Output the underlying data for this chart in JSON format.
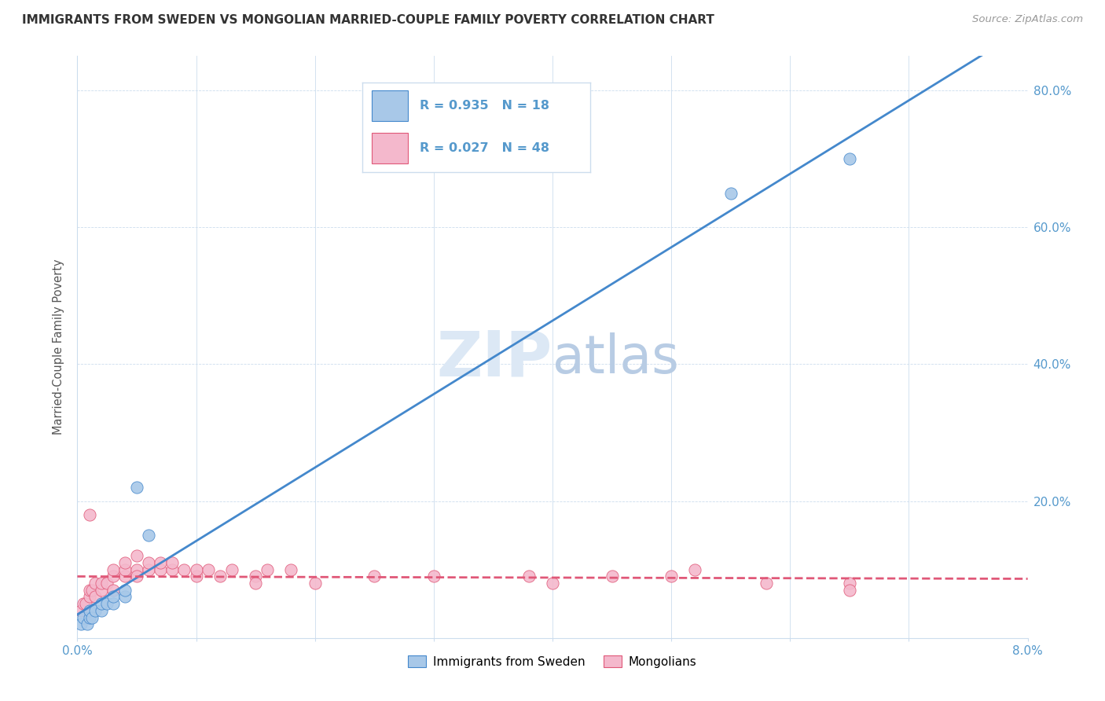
{
  "title": "IMMIGRANTS FROM SWEDEN VS MONGOLIAN MARRIED-COUPLE FAMILY POVERTY CORRELATION CHART",
  "source": "Source: ZipAtlas.com",
  "ylabel": "Married-Couple Family Poverty",
  "legend1_label": "Immigrants from Sweden",
  "legend2_label": "Mongolians",
  "legend1_R": "0.935",
  "legend1_N": "18",
  "legend2_R": "0.027",
  "legend2_N": "48",
  "color_sweden": "#a8c8e8",
  "color_mongolia": "#f4b8cc",
  "color_line_sweden": "#4488cc",
  "color_line_mongolia": "#e05878",
  "color_axis_text": "#5599cc",
  "color_title": "#333333",
  "color_source": "#999999",
  "watermark_color": "#dce8f5",
  "background_color": "#ffffff",
  "grid_color": "#ccddee",
  "xmin": 0.0,
  "xmax": 0.08,
  "ymin": 0.0,
  "ymax": 0.85,
  "ytick_vals": [
    0.2,
    0.4,
    0.6,
    0.8
  ],
  "ytick_labels": [
    "20.0%",
    "40.0%",
    "60.0%",
    "80.0%"
  ],
  "sweden_x": [
    0.0003,
    0.0005,
    0.0008,
    0.001,
    0.001,
    0.0012,
    0.0015,
    0.002,
    0.002,
    0.0025,
    0.003,
    0.003,
    0.004,
    0.004,
    0.005,
    0.006,
    0.055,
    0.065
  ],
  "sweden_y": [
    0.02,
    0.03,
    0.02,
    0.03,
    0.04,
    0.03,
    0.04,
    0.04,
    0.05,
    0.05,
    0.05,
    0.06,
    0.06,
    0.07,
    0.22,
    0.15,
    0.65,
    0.7
  ],
  "mongolia_x": [
    0.0003,
    0.0005,
    0.0007,
    0.001,
    0.001,
    0.0012,
    0.0015,
    0.0015,
    0.002,
    0.002,
    0.0025,
    0.003,
    0.003,
    0.003,
    0.004,
    0.004,
    0.004,
    0.005,
    0.005,
    0.005,
    0.006,
    0.006,
    0.007,
    0.007,
    0.008,
    0.008,
    0.009,
    0.01,
    0.01,
    0.011,
    0.012,
    0.013,
    0.015,
    0.015,
    0.016,
    0.018,
    0.02,
    0.025,
    0.03,
    0.038,
    0.04,
    0.045,
    0.05,
    0.052,
    0.058,
    0.065,
    0.001,
    0.065
  ],
  "mongolia_y": [
    0.04,
    0.05,
    0.05,
    0.06,
    0.07,
    0.07,
    0.06,
    0.08,
    0.07,
    0.08,
    0.08,
    0.07,
    0.09,
    0.1,
    0.09,
    0.1,
    0.11,
    0.1,
    0.09,
    0.12,
    0.1,
    0.11,
    0.1,
    0.11,
    0.1,
    0.11,
    0.1,
    0.09,
    0.1,
    0.1,
    0.09,
    0.1,
    0.09,
    0.08,
    0.1,
    0.1,
    0.08,
    0.09,
    0.09,
    0.09,
    0.08,
    0.09,
    0.09,
    0.1,
    0.08,
    0.08,
    0.18,
    0.07
  ],
  "marker_size": 120,
  "line_width": 2.0
}
